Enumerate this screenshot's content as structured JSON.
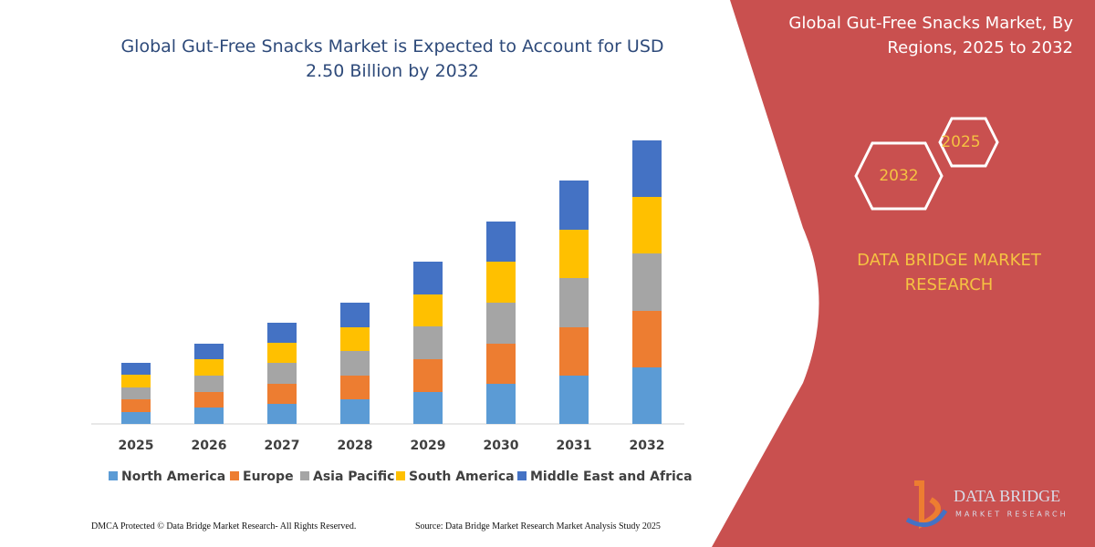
{
  "chart_data": {
    "type": "stacked_bar",
    "title": "Global Gut-Free Snacks Market is Expected to Account for USD 2.50 Billion by 2032",
    "categories": [
      "2025",
      "2026",
      "2027",
      "2028",
      "2029",
      "2030",
      "2031",
      "2032"
    ],
    "series": [
      {
        "name": "North America",
        "color": "#5b9bd5",
        "values": [
          13,
          18,
          22,
          27,
          35,
          44,
          53,
          62
        ]
      },
      {
        "name": "Europe",
        "color": "#ed7d31",
        "values": [
          14,
          17,
          22,
          26,
          36,
          44,
          53,
          62
        ]
      },
      {
        "name": "Asia Pacific",
        "color": "#a5a5a5",
        "values": [
          13,
          18,
          23,
          27,
          36,
          45,
          54,
          63
        ]
      },
      {
        "name": "South America",
        "color": "#ffc000",
        "values": [
          14,
          18,
          22,
          26,
          35,
          45,
          53,
          62
        ]
      },
      {
        "name": "Middle East and Africa",
        "color": "#4472c4",
        "values": [
          13,
          17,
          22,
          27,
          36,
          44,
          54,
          62
        ]
      }
    ],
    "ylim": [
      0,
      320
    ]
  },
  "panel": {
    "title": "Global Gut-Free Snacks Market, By Regions, 2025 to 2032",
    "hexagons": [
      "2025",
      "2032"
    ],
    "brand": "DATA BRIDGE MARKET RESEARCH"
  },
  "logo": {
    "name": "DATA BRIDGE",
    "tagline": "MARKET RESEARCH"
  },
  "footer": {
    "left": "DMCA Protected © Data Bridge Market Research-  All Rights Reserved.",
    "right": "Source: Data Bridge Market Research  Market Analysis Study 2025"
  }
}
